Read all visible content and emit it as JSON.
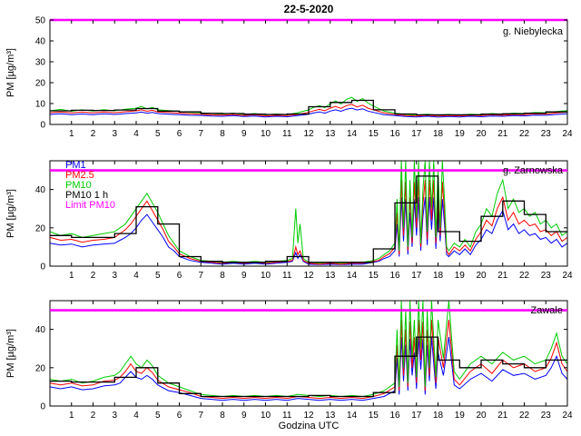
{
  "title": "22-5-2020",
  "xlabel": "Godzina UTC",
  "ylabel": "PM [µg/m³]",
  "chart_data": {
    "type": "line",
    "xlim": [
      0,
      24
    ],
    "xticks": [
      1,
      2,
      3,
      4,
      5,
      6,
      7,
      8,
      9,
      10,
      11,
      12,
      13,
      14,
      15,
      16,
      17,
      18,
      19,
      20,
      21,
      22,
      23,
      24
    ],
    "limit_value": 50,
    "grid": false,
    "legend_position": "top-left-panel-2",
    "colors": {
      "pm1": "#0000ff",
      "pm25": "#ff0000",
      "pm10": "#00cc00",
      "pm10_1h": "#000000",
      "limit": "#ff00ff"
    },
    "legend": [
      {
        "label": "PM1",
        "color": "#0000ff"
      },
      {
        "label": "PM2.5",
        "color": "#ff0000"
      },
      {
        "label": "PM10",
        "color": "#00cc00"
      },
      {
        "label": "PM10 1 h",
        "color": "#000000"
      },
      {
        "label": "Limit PM10",
        "color": "#ff00ff"
      }
    ],
    "panels": [
      {
        "id": "niebylecka",
        "station": "g. Niebylecka",
        "ylim": [
          0,
          50
        ],
        "yticks": [
          0,
          10,
          20,
          30,
          40,
          50
        ],
        "x": [
          0,
          0.5,
          1,
          1.5,
          2,
          2.5,
          3,
          3.5,
          4,
          4.25,
          4.5,
          4.75,
          5,
          5.5,
          6,
          6.5,
          7,
          7.5,
          8,
          8.5,
          9,
          9.5,
          10,
          10.5,
          11,
          11.5,
          12,
          12.25,
          12.5,
          12.75,
          13,
          13.25,
          13.5,
          13.75,
          14,
          14.25,
          14.5,
          14.75,
          15,
          15.5,
          16,
          16.5,
          17,
          17.5,
          18,
          18.5,
          19,
          19.5,
          20,
          20.5,
          21,
          21.5,
          22,
          22.5,
          23,
          23.5,
          24
        ],
        "pm1": [
          4.8,
          5.1,
          4.7,
          5.0,
          4.7,
          5.1,
          4.8,
          5.2,
          5.5,
          5.9,
          5.4,
          5.8,
          5.2,
          4.9,
          4.7,
          4.4,
          4.3,
          4.0,
          3.9,
          4.2,
          3.8,
          4.0,
          3.6,
          3.9,
          3.7,
          4.2,
          4.9,
          5.5,
          6.0,
          5.4,
          6.4,
          7.0,
          6.3,
          7.3,
          7.8,
          6.9,
          7.5,
          6.4,
          5.8,
          4.7,
          4.2,
          3.8,
          3.6,
          3.9,
          3.5,
          3.8,
          3.6,
          3.9,
          3.7,
          4.0,
          3.9,
          4.2,
          4.1,
          4.5,
          4.4,
          4.8,
          5.1
        ],
        "pm25": [
          5.6,
          6.0,
          5.5,
          5.9,
          5.5,
          6.0,
          5.6,
          6.1,
          6.5,
          7.0,
          6.3,
          6.8,
          6.0,
          5.7,
          5.4,
          5.1,
          4.9,
          4.6,
          4.5,
          4.8,
          4.3,
          4.6,
          4.1,
          4.4,
          4.2,
          4.8,
          5.8,
          6.6,
          7.2,
          6.5,
          7.8,
          8.6,
          7.7,
          9.0,
          9.6,
          8.4,
          9.2,
          7.8,
          7.0,
          5.5,
          4.8,
          4.3,
          4.0,
          4.4,
          4.0,
          4.3,
          4.1,
          4.4,
          4.2,
          4.6,
          4.4,
          4.8,
          4.7,
          5.1,
          5.0,
          5.5,
          5.9
        ],
        "pm10": [
          6.5,
          7.2,
          6.3,
          7.0,
          6.4,
          7.1,
          6.5,
          7.3,
          7.8,
          8.6,
          7.4,
          8.2,
          7.0,
          6.6,
          6.2,
          5.8,
          5.6,
          5.2,
          5.0,
          5.4,
          4.8,
          5.2,
          4.6,
          5.0,
          4.7,
          5.6,
          7.0,
          8.2,
          9.0,
          8.0,
          10.0,
          11.2,
          9.8,
          12.0,
          13.0,
          11.0,
          12.4,
          10.2,
          8.8,
          6.4,
          5.4,
          4.8,
          4.5,
          4.9,
          4.4,
          4.8,
          4.5,
          4.9,
          4.7,
          5.2,
          4.9,
          5.4,
          5.2,
          5.7,
          5.6,
          6.2,
          6.6
        ],
        "pm10_1h": [
          6.5,
          6.8,
          6.7,
          6.9,
          7.6,
          6.4,
          6.0,
          5.3,
          5.2,
          4.9,
          4.8,
          5.0,
          8.5,
          10.5,
          11.5,
          7.0,
          5.0,
          4.6,
          4.6,
          4.6,
          4.9,
          5.1,
          5.4,
          6.0
        ]
      },
      {
        "id": "zarnowska",
        "station": "g. Zarnowska",
        "ylim": [
          0,
          55
        ],
        "yticks": [
          0,
          20,
          40
        ],
        "x": [
          0,
          0.5,
          1,
          1.5,
          2,
          2.5,
          3,
          3.25,
          3.5,
          3.75,
          4,
          4.25,
          4.5,
          4.75,
          5,
          5.25,
          5.5,
          5.75,
          6,
          6.5,
          7,
          7.5,
          8,
          8.5,
          9,
          9.5,
          10,
          10.5,
          11,
          11.25,
          11.4,
          11.5,
          11.6,
          11.75,
          12,
          12.5,
          13,
          13.5,
          14,
          14.5,
          15,
          15.25,
          15.5,
          15.75,
          16,
          16.1,
          16.2,
          16.3,
          16.4,
          16.5,
          16.6,
          16.7,
          16.8,
          16.9,
          17,
          17.1,
          17.2,
          17.3,
          17.4,
          17.5,
          17.6,
          17.7,
          17.8,
          17.9,
          18,
          18.1,
          18.2,
          18.3,
          18.4,
          18.5,
          18.75,
          19,
          19.25,
          19.5,
          19.75,
          20,
          20.25,
          20.5,
          20.75,
          21,
          21.25,
          21.5,
          21.75,
          22,
          22.25,
          22.5,
          22.75,
          23,
          23.25,
          23.5,
          23.75,
          24
        ],
        "pm1": [
          12,
          11,
          11.5,
          10,
          11,
          11.5,
          12,
          13.5,
          15,
          17,
          20,
          24,
          27,
          23,
          19,
          15,
          10,
          8,
          5,
          3,
          2,
          1.5,
          1,
          1.5,
          1,
          1.5,
          1,
          1.5,
          2,
          2.5,
          7,
          4,
          6,
          2.5,
          1,
          0.8,
          1,
          0.8,
          1,
          1,
          2,
          2.5,
          4,
          5,
          8,
          22,
          5,
          36,
          13,
          35,
          6,
          28,
          10,
          35,
          16,
          36,
          8,
          26,
          36,
          11,
          36,
          19,
          36,
          9,
          32,
          13,
          35,
          22,
          6,
          5,
          8,
          6,
          9,
          6,
          11,
          14,
          19,
          17,
          24,
          29,
          19,
          22,
          17,
          19,
          16,
          17,
          14,
          15,
          12,
          14,
          10,
          12
        ],
        "pm25": [
          15,
          13.5,
          14,
          12.5,
          13.5,
          14,
          15,
          17,
          19,
          22,
          26,
          30,
          34,
          29,
          24,
          19,
          13,
          10,
          6.5,
          4,
          2.5,
          2,
          1.5,
          2,
          1.5,
          2,
          1.5,
          2,
          2.5,
          3,
          10,
          6,
          8,
          3,
          1.5,
          1,
          1.5,
          1,
          1.5,
          1.5,
          2.5,
          3,
          5,
          6.5,
          10,
          28,
          6,
          45,
          16,
          44,
          8,
          36,
          12,
          44,
          20,
          45,
          10,
          32,
          45,
          14,
          45,
          24,
          45,
          12,
          40,
          16,
          44,
          28,
          8,
          6,
          10,
          8,
          11,
          8,
          14,
          18,
          24,
          21,
          30,
          36,
          24,
          28,
          22,
          24,
          21,
          22,
          18,
          19,
          16,
          18,
          13,
          15
        ],
        "pm10": [
          18,
          16,
          17,
          15,
          16,
          17,
          18,
          20,
          22,
          26,
          30,
          34,
          38,
          33,
          28,
          22,
          16,
          12,
          8,
          5,
          3,
          2.5,
          2,
          2.5,
          2,
          2.5,
          2,
          2.5,
          3,
          4,
          30,
          12,
          22,
          4,
          2,
          1.5,
          2,
          1.5,
          2,
          2,
          3,
          4,
          6,
          8,
          12,
          35,
          8,
          55,
          20,
          55,
          10,
          45,
          15,
          55,
          25,
          55,
          12,
          40,
          55,
          18,
          55,
          30,
          55,
          15,
          50,
          20,
          55,
          35,
          10,
          8,
          12,
          10,
          14,
          10,
          18,
          22,
          30,
          26,
          38,
          45,
          30,
          35,
          28,
          30,
          26,
          28,
          22,
          24,
          20,
          22,
          16,
          18
        ],
        "pm10_1h": [
          16,
          15,
          15,
          17,
          31,
          22,
          5,
          2.5,
          2,
          2,
          2.5,
          5,
          2,
          2,
          2,
          9,
          33,
          47,
          18,
          13,
          26,
          34,
          27,
          18
        ]
      },
      {
        "id": "zawale",
        "station": "Zawale",
        "ylim": [
          0,
          55
        ],
        "yticks": [
          0,
          20,
          40
        ],
        "x": [
          0,
          0.5,
          1,
          1.5,
          2,
          2.5,
          3,
          3.25,
          3.5,
          3.75,
          4,
          4.25,
          4.5,
          4.75,
          5,
          5.5,
          6,
          6.5,
          7,
          7.5,
          8,
          8.5,
          9,
          9.5,
          10,
          10.5,
          11,
          11.5,
          12,
          12.5,
          13,
          13.5,
          14,
          14.5,
          15,
          15.5,
          16,
          16.1,
          16.2,
          16.3,
          16.4,
          16.5,
          16.6,
          16.7,
          16.8,
          16.9,
          17,
          17.1,
          17.2,
          17.3,
          17.4,
          17.5,
          17.6,
          17.7,
          17.8,
          17.9,
          18,
          18.25,
          18.5,
          18.75,
          19,
          19.5,
          20,
          20.5,
          21,
          21.5,
          22,
          22.5,
          23,
          23.25,
          23.5,
          23.75,
          24
        ],
        "pm1": [
          10,
          9,
          10,
          8.5,
          9,
          10.5,
          11,
          12,
          15,
          18,
          15,
          14,
          16,
          14,
          11,
          8,
          7,
          5.5,
          4,
          3.5,
          3,
          3.5,
          3,
          3.5,
          3,
          3.5,
          3,
          4,
          3.5,
          3,
          3.5,
          3,
          3.5,
          3,
          4,
          5,
          8,
          25,
          6,
          36,
          13,
          32,
          8,
          35,
          16,
          28,
          9,
          36,
          19,
          35,
          6,
          32,
          13,
          36,
          22,
          9,
          28,
          16,
          36,
          11,
          9,
          14,
          17,
          13,
          19,
          16,
          17,
          14,
          16,
          20,
          26,
          17,
          14
        ],
        "pm25": [
          12,
          11,
          12,
          10.5,
          11,
          13,
          13.5,
          15,
          18,
          22,
          18,
          17,
          20,
          17.5,
          13.5,
          10,
          8.5,
          7,
          5,
          4.5,
          4,
          4.5,
          4,
          4.5,
          4,
          4.5,
          4,
          5,
          4.5,
          4,
          4.5,
          4,
          4.5,
          4,
          5,
          6.5,
          10,
          32,
          8,
          45,
          16,
          40,
          10,
          44,
          20,
          36,
          12,
          45,
          24,
          44,
          8,
          40,
          16,
          45,
          28,
          12,
          36,
          20,
          45,
          14,
          11,
          18,
          22,
          17,
          24,
          20,
          22,
          18,
          20,
          25,
          33,
          22,
          18
        ],
        "pm10": [
          14,
          13,
          14,
          12,
          13,
          15,
          16,
          18,
          22,
          26,
          22,
          20,
          24,
          21,
          16,
          12,
          10,
          8,
          6,
          5.5,
          5,
          5.5,
          5,
          5.5,
          5,
          5.5,
          5,
          6,
          5.5,
          5,
          5.5,
          5,
          5.5,
          5,
          6,
          8,
          12,
          40,
          10,
          55,
          20,
          50,
          12,
          55,
          25,
          45,
          15,
          55,
          30,
          55,
          10,
          50,
          20,
          55,
          35,
          15,
          45,
          25,
          55,
          18,
          14,
          22,
          26,
          22,
          28,
          24,
          26,
          22,
          24,
          30,
          38,
          26,
          22
        ],
        "pm10_1h": [
          13,
          12.5,
          12.5,
          15,
          20,
          12,
          6.5,
          5,
          5,
          5,
          5,
          5,
          5.5,
          5,
          5,
          7,
          26,
          36,
          24,
          20,
          24,
          22,
          20,
          24
        ]
      }
    ]
  }
}
